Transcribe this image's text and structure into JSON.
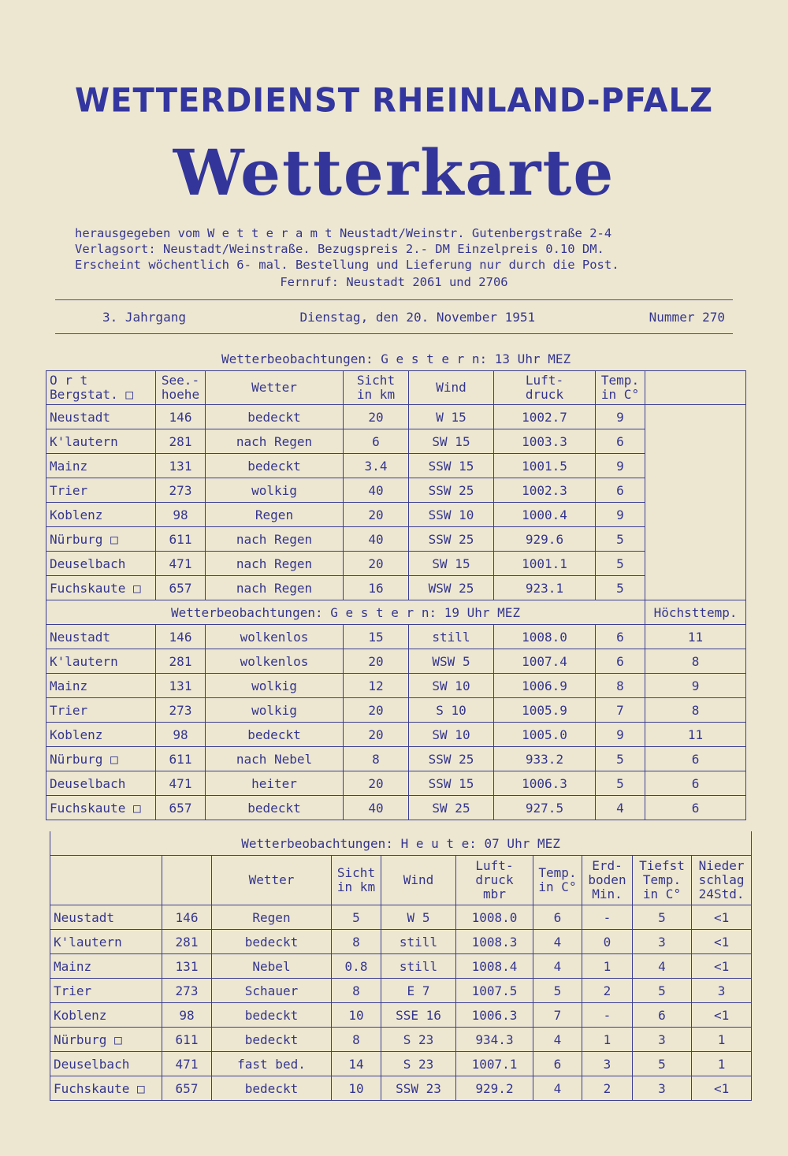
{
  "header": {
    "org": "WETTERDIENST RHEINLAND-PFALZ",
    "title": "Wetterkarte",
    "info_lines": [
      "herausgegeben vom W e t t e r a m t Neustadt/Weinstr. Gutenbergstraße 2-4",
      "Verlagsort: Neustadt/Weinstraße. Bezugspreis 2.- DM Einzelpreis 0.10 DM.",
      "Erscheint wöchentlich 6- mal. Bestellung und Lieferung nur durch die Post.",
      "Fernruf: Neustadt 2061 und 2706"
    ],
    "jahrgang": "3. Jahrgang",
    "date": "Dienstag, den 20. November 1951",
    "number": "Nummer 270"
  },
  "section1": {
    "title": "Wetterbeobachtungen: G e s t e r n: 13 Uhr MEZ",
    "headers": [
      "O r t\nBergstat. □",
      "See.-\nhoehe",
      "Wetter",
      "Sicht\nin km",
      "Wind",
      "Luft-\ndruck",
      "Temp.\nin C°",
      ""
    ],
    "rows": [
      [
        "Neustadt",
        "146",
        "bedeckt",
        "20",
        "W 15",
        "1002.7",
        "9"
      ],
      [
        "K'lautern",
        "281",
        "nach Regen",
        "6",
        "SW 15",
        "1003.3",
        "6"
      ],
      [
        "Mainz",
        "131",
        "bedeckt",
        "3.4",
        "SSW 15",
        "1001.5",
        "9"
      ],
      [
        "Trier",
        "273",
        "wolkig",
        "40",
        "SSW 25",
        "1002.3",
        "6"
      ],
      [
        "Koblenz",
        "98",
        "Regen",
        "20",
        "SSW 10",
        "1000.4",
        "9"
      ],
      [
        "Nürburg □",
        "611",
        "nach Regen",
        "40",
        "SSW 25",
        "929.6",
        "5"
      ],
      [
        "Deuselbach",
        "471",
        "nach Regen",
        "20",
        "SW 15",
        "1001.1",
        "5"
      ],
      [
        "Fuchskaute □",
        "657",
        "nach Regen",
        "16",
        "WSW 25",
        "923.1",
        "5"
      ]
    ]
  },
  "section2": {
    "title": "Wetterbeobachtungen: G e s t e r n: 19 Uhr MEZ",
    "extra_header": "Höchsttemp.",
    "rows": [
      [
        "Neustadt",
        "146",
        "wolkenlos",
        "15",
        "still",
        "1008.0",
        "6",
        "11"
      ],
      [
        "K'lautern",
        "281",
        "wolkenlos",
        "20",
        "WSW 5",
        "1007.4",
        "6",
        "8"
      ],
      [
        "Mainz",
        "131",
        "wolkig",
        "12",
        "SW 10",
        "1006.9",
        "8",
        "9"
      ],
      [
        "Trier",
        "273",
        "wolkig",
        "20",
        "S 10",
        "1005.9",
        "7",
        "8"
      ],
      [
        "Koblenz",
        "98",
        "bedeckt",
        "20",
        "SW 10",
        "1005.0",
        "9",
        "11"
      ],
      [
        "Nürburg □",
        "611",
        "nach Nebel",
        "8",
        "SSW 25",
        "933.2",
        "5",
        "6"
      ],
      [
        "Deuselbach",
        "471",
        "heiter",
        "20",
        "SSW 15",
        "1006.3",
        "5",
        "6"
      ],
      [
        "Fuchskaute □",
        "657",
        "bedeckt",
        "40",
        "SW 25",
        "927.5",
        "4",
        "6"
      ]
    ]
  },
  "section3": {
    "title": "Wetterbeobachtungen: H e u t e: 07 Uhr MEZ",
    "headers": [
      "",
      "",
      "Wetter",
      "Sicht\nin km",
      "Wind",
      "Luft-\ndruck\nmbr",
      "Temp.\nin C°",
      "Erd-\nboden\nMin.",
      "Tiefst\nTemp.\nin C°",
      "Nieder\nschlag\n24Std."
    ],
    "rows": [
      [
        "Neustadt",
        "146",
        "Regen",
        "5",
        "W 5",
        "1008.0",
        "6",
        "-",
        "5",
        "<1"
      ],
      [
        "K'lautern",
        "281",
        "bedeckt",
        "8",
        "still",
        "1008.3",
        "4",
        "0",
        "3",
        "<1"
      ],
      [
        "Mainz",
        "131",
        "Nebel",
        "0.8",
        "still",
        "1008.4",
        "4",
        "1",
        "4",
        "<1"
      ],
      [
        "Trier",
        "273",
        "Schauer",
        "8",
        "E 7",
        "1007.5",
        "5",
        "2",
        "5",
        "3"
      ],
      [
        "Koblenz",
        "98",
        "bedeckt",
        "10",
        "SSE 16",
        "1006.3",
        "7",
        "-",
        "6",
        "<1"
      ],
      [
        "Nürburg □",
        "611",
        "bedeckt",
        "8",
        "S 23",
        "934.3",
        "4",
        "1",
        "3",
        "1"
      ],
      [
        "Deuselbach",
        "471",
        "fast bed.",
        "14",
        "S 23",
        "1007.1",
        "6",
        "3",
        "5",
        "1"
      ],
      [
        "Fuchskaute □",
        "657",
        "bedeckt",
        "10",
        "SSW 23",
        "929.2",
        "4",
        "2",
        "3",
        "<1"
      ]
    ]
  }
}
